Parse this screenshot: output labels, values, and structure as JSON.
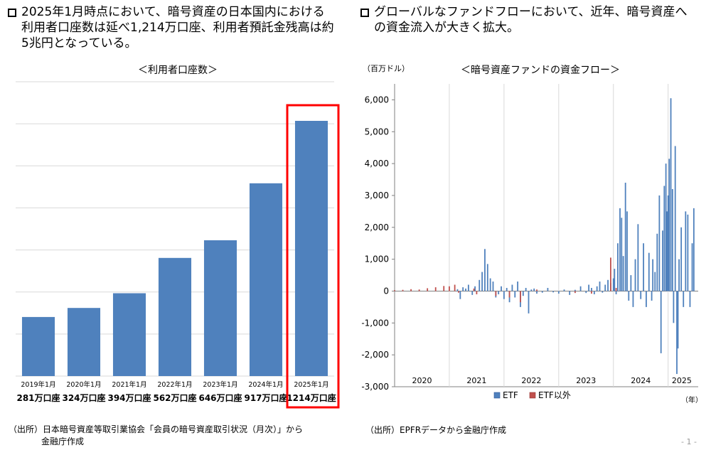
{
  "left": {
    "heading": "2025年1月時点において、暗号資産の日本国内における利用者口座数は延べ1,214万口座、利用者預託金残高は約5兆円となっている。",
    "source_line1": "（出所）日本暗号資産等取引業協会「会員の暗号資産取引状況（月次）」から",
    "source_line2": "金融庁作成"
  },
  "right": {
    "heading": "グローバルなファンドフローにおいて、近年、暗号資産への資金流入が大きく拡大。",
    "source": "（出所）EPFRデータから金融庁作成"
  },
  "page_number": "- 1 -",
  "colors": {
    "bar": "#4f81bd",
    "highlight": "#ff0000",
    "etf": "#4f81bd",
    "non_etf": "#c0504d"
  },
  "chart_data": [
    {
      "type": "bar",
      "title": "＜利用者口座数＞",
      "categories": [
        "2019年1月",
        "2020年1月",
        "2021年1月",
        "2022年1月",
        "2023年1月",
        "2024年1月",
        "2025年1月"
      ],
      "value_labels": [
        "281万口座",
        "324万口座",
        "394万口座",
        "562万口座",
        "646万口座",
        "917万口座",
        "1214万口座"
      ],
      "values": [
        281,
        324,
        394,
        562,
        646,
        917,
        1214
      ],
      "ylim": [
        0,
        1400
      ],
      "grid": true,
      "highlight_category": "2025年1月"
    },
    {
      "type": "bar",
      "title": "＜暗号資産ファンドの資金フロー＞",
      "ylabel": "（百万ドル）",
      "xlabel": "（年）",
      "ylim": [
        -3000,
        6500
      ],
      "yticks": [
        "-3,000",
        "-2,000",
        "-1,000",
        "0",
        "1,000",
        "2,000",
        "3,000",
        "4,000",
        "5,000",
        "6,000"
      ],
      "year_labels": [
        "2020",
        "2021",
        "2022",
        "2023",
        "2024",
        "2025"
      ],
      "legend": [
        "ETF",
        "ETF以外"
      ],
      "legend_position": "bottom",
      "grid": "vertical-year-lines",
      "series": [
        {
          "name": "ETF",
          "points": [
            [
              2021.15,
              60
            ],
            [
              2021.2,
              -250
            ],
            [
              2021.25,
              120
            ],
            [
              2021.3,
              80
            ],
            [
              2021.35,
              200
            ],
            [
              2021.42,
              -120
            ],
            [
              2021.47,
              150
            ],
            [
              2021.55,
              350
            ],
            [
              2021.6,
              600
            ],
            [
              2021.65,
              1320
            ],
            [
              2021.7,
              850
            ],
            [
              2021.75,
              400
            ],
            [
              2021.8,
              300
            ],
            [
              2021.85,
              -200
            ],
            [
              2021.9,
              -100
            ],
            [
              2021.95,
              150
            ],
            [
              2022.0,
              -250
            ],
            [
              2022.05,
              100
            ],
            [
              2022.1,
              -350
            ],
            [
              2022.15,
              200
            ],
            [
              2022.2,
              -200
            ],
            [
              2022.25,
              300
            ],
            [
              2022.3,
              -500
            ],
            [
              2022.35,
              -150
            ],
            [
              2022.4,
              100
            ],
            [
              2022.45,
              -700
            ],
            [
              2022.5,
              50
            ],
            [
              2022.55,
              80
            ],
            [
              2022.6,
              -80
            ],
            [
              2022.7,
              -50
            ],
            [
              2022.8,
              100
            ],
            [
              2022.9,
              -40
            ],
            [
              2023.0,
              -80
            ],
            [
              2023.1,
              50
            ],
            [
              2023.2,
              -120
            ],
            [
              2023.3,
              40
            ],
            [
              2023.4,
              150
            ],
            [
              2023.5,
              -60
            ],
            [
              2023.55,
              200
            ],
            [
              2023.6,
              100
            ],
            [
              2023.65,
              -100
            ],
            [
              2023.7,
              150
            ],
            [
              2023.75,
              300
            ],
            [
              2023.8,
              -50
            ],
            [
              2023.85,
              200
            ],
            [
              2023.9,
              350
            ],
            [
              2023.95,
              250
            ],
            [
              2024.0,
              400
            ],
            [
              2024.02,
              700
            ],
            [
              2024.05,
              -100
            ],
            [
              2024.08,
              1500
            ],
            [
              2024.12,
              2600
            ],
            [
              2024.15,
              2300
            ],
            [
              2024.18,
              1100
            ],
            [
              2024.22,
              3400
            ],
            [
              2024.25,
              2500
            ],
            [
              2024.28,
              -300
            ],
            [
              2024.32,
              500
            ],
            [
              2024.36,
              -500
            ],
            [
              2024.4,
              1000
            ],
            [
              2024.45,
              2100
            ],
            [
              2024.5,
              -250
            ],
            [
              2024.55,
              1500
            ],
            [
              2024.6,
              -500
            ],
            [
              2024.65,
              1200
            ],
            [
              2024.7,
              -300
            ],
            [
              2024.72,
              1000
            ],
            [
              2024.76,
              600
            ],
            [
              2024.8,
              1800
            ],
            [
              2024.84,
              3000
            ],
            [
              2024.87,
              -1950
            ],
            [
              2024.9,
              1900
            ],
            [
              2024.93,
              3300
            ],
            [
              2024.96,
              4000
            ],
            [
              2024.98,
              2500
            ],
            [
              2025.0,
              3000
            ],
            [
              2025.02,
              4150
            ],
            [
              2025.05,
              6050
            ],
            [
              2025.08,
              3200
            ],
            [
              2025.1,
              -1000
            ],
            [
              2025.13,
              4550
            ],
            [
              2025.16,
              -2600
            ],
            [
              2025.18,
              -1800
            ],
            [
              2025.2,
              1000
            ],
            [
              2025.24,
              2000
            ],
            [
              2025.28,
              -500
            ],
            [
              2025.32,
              2500
            ],
            [
              2025.36,
              2400
            ],
            [
              2025.4,
              -500
            ],
            [
              2025.44,
              1500
            ],
            [
              2025.47,
              2600
            ]
          ]
        },
        {
          "name": "ETF以外",
          "points": [
            [
              2020.0,
              30
            ],
            [
              2020.15,
              40
            ],
            [
              2020.3,
              60
            ],
            [
              2020.45,
              50
            ],
            [
              2020.6,
              90
            ],
            [
              2020.75,
              120
            ],
            [
              2020.9,
              160
            ],
            [
              2021.0,
              150
            ],
            [
              2021.1,
              200
            ],
            [
              2021.17,
              -50
            ],
            [
              2021.45,
              80
            ],
            [
              2021.5,
              -100
            ],
            [
              2021.85,
              -150
            ],
            [
              2022.1,
              -200
            ],
            [
              2022.3,
              -350
            ],
            [
              2022.6,
              50
            ],
            [
              2023.3,
              -60
            ],
            [
              2023.6,
              -80
            ],
            [
              2023.95,
              1050
            ],
            [
              2024.05,
              100
            ]
          ]
        }
      ]
    }
  ]
}
